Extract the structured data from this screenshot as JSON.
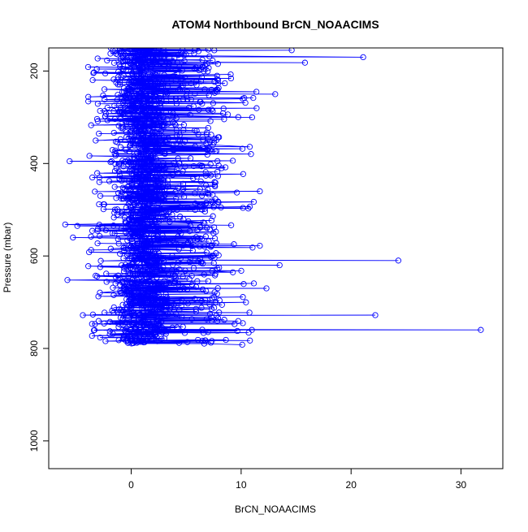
{
  "chart_data": {
    "type": "scatter",
    "title": "ATOM4 Northbound BrCN_NOAACIMS",
    "xlabel": "BrCN_NOAACIMS",
    "ylabel": "Pressure (mbar)",
    "xlim": [
      -7.5,
      33.8
    ],
    "ylim": [
      1060,
      150
    ],
    "y_reversed": true,
    "x_ticks": [
      0,
      10,
      20,
      30
    ],
    "x_tick_labels": [
      "0",
      "10",
      "20",
      "30"
    ],
    "y_ticks": [
      200,
      400,
      600,
      800,
      1000
    ],
    "y_tick_labels": [
      "200",
      "400",
      "600",
      "800",
      "1000"
    ],
    "grid": false,
    "legend": "none",
    "marker": "open-circle",
    "connect_points": true,
    "series_color": "#0000ff",
    "data_pressure_range": [
      150,
      790
    ],
    "notable_points": [
      {
        "x": 31.8,
        "y": 760
      },
      {
        "x": 24.3,
        "y": 610
      },
      {
        "x": 22.2,
        "y": 728
      },
      {
        "x": 21.1,
        "y": 170
      },
      {
        "x": 13.5,
        "y": 620
      },
      {
        "x": 15.8,
        "y": 182
      },
      {
        "x": 14.6,
        "y": 155
      },
      {
        "x": 13.1,
        "y": 250
      },
      {
        "x": 11.7,
        "y": 578
      },
      {
        "x": 11.7,
        "y": 460
      },
      {
        "x": 10.1,
        "y": 792
      },
      {
        "x": 10.8,
        "y": 783
      },
      {
        "x": 12.3,
        "y": 670
      },
      {
        "x": 11.0,
        "y": 300
      },
      {
        "x": -6.0,
        "y": 532
      },
      {
        "x": -5.8,
        "y": 652
      },
      {
        "x": -5.6,
        "y": 395
      },
      {
        "x": -5.3,
        "y": 560
      },
      {
        "x": -4.9,
        "y": 535
      },
      {
        "x": -4.4,
        "y": 728
      }
    ]
  }
}
